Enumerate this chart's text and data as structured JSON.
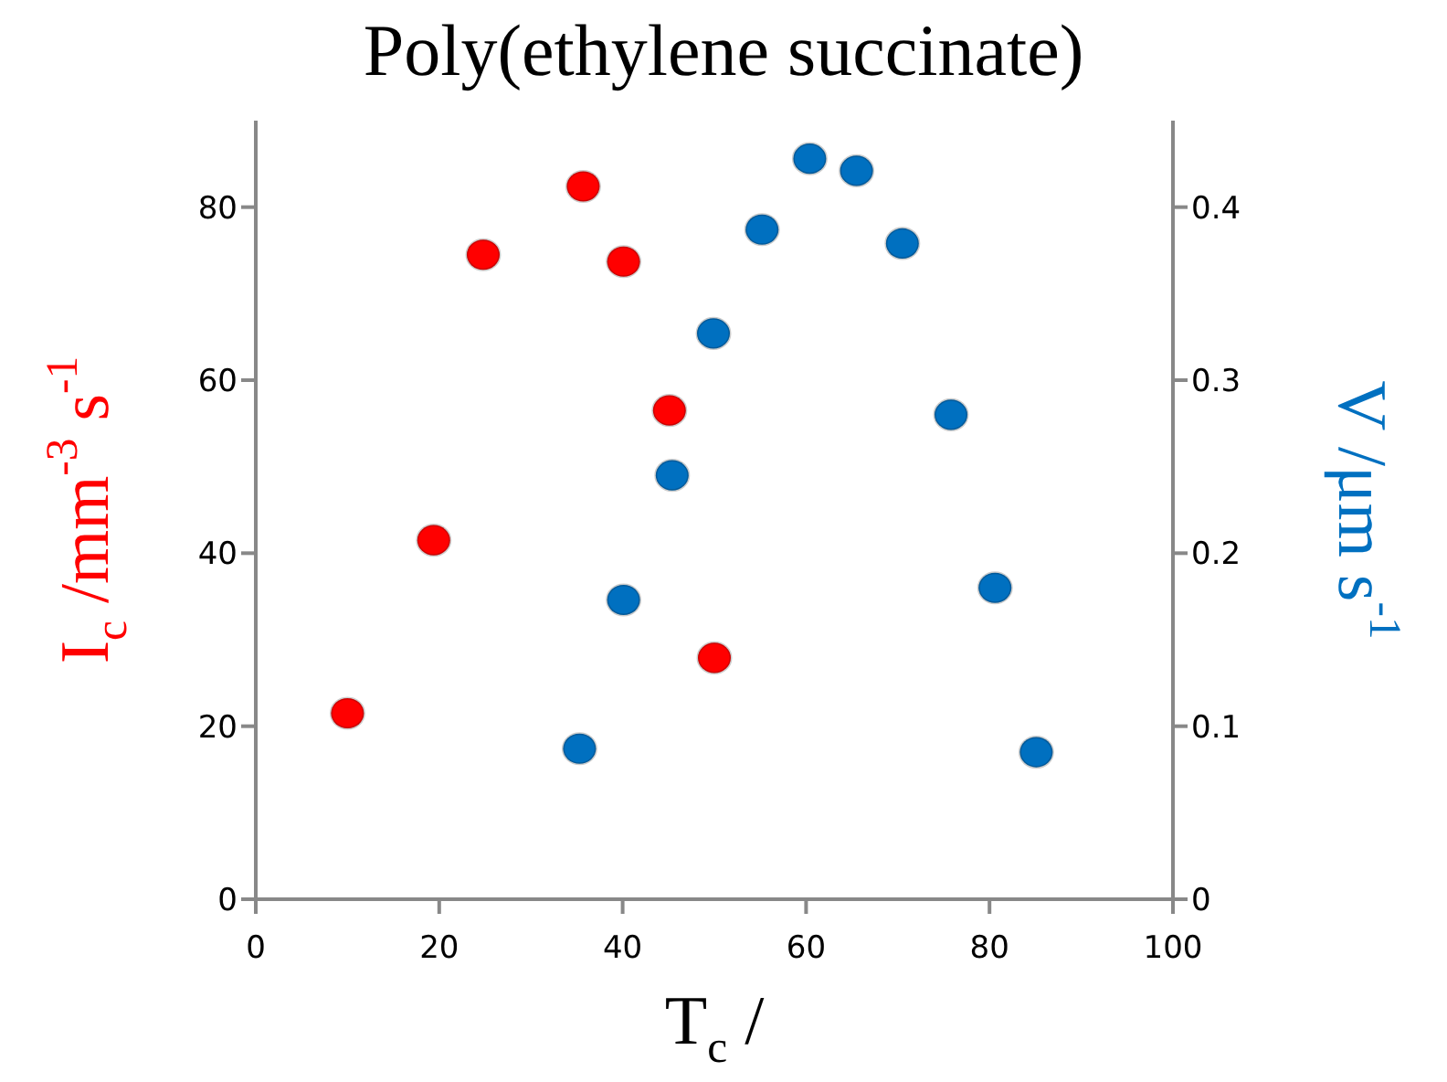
{
  "chart_data": {
    "type": "scatter",
    "title": "Poly(ethylene succinate)",
    "xlabel": "T$_{c}$ /",
    "ylabel": "I$_{c}$ /mm$^{-3}$ s$^{-1}$",
    "y2label": "V /μm s$^{-1}$",
    "xlim": [
      0,
      100
    ],
    "xticks": [
      0,
      20,
      40,
      60,
      80,
      100
    ],
    "ylim": [
      0,
      90
    ],
    "yticks": [
      0,
      20,
      40,
      60,
      80
    ],
    "y2lim": [
      0,
      0.45
    ],
    "y2ticks": [
      0,
      0.1,
      0.2,
      0.3,
      0.4
    ],
    "marker": "circle",
    "series": [
      {
        "color": "#ff0000",
        "x": [
          10,
          19.4,
          24.8,
          35.7,
          40.1,
          45.1,
          50
        ],
        "values": [
          21.5,
          41.5,
          74.5,
          82.4,
          73.7,
          56.5,
          27.9
        ]
      },
      {
        "color": "#0070c0",
        "axis": "y2",
        "x": [
          35.3,
          40.1,
          45.4,
          49.9,
          55.2,
          60.4,
          65.5,
          70.5,
          75.8,
          80.6,
          85.1
        ],
        "values": [
          0.087,
          0.173,
          0.245,
          0.327,
          0.387,
          0.428,
          0.421,
          0.379,
          0.28,
          0.18,
          0.085
        ]
      }
    ]
  }
}
